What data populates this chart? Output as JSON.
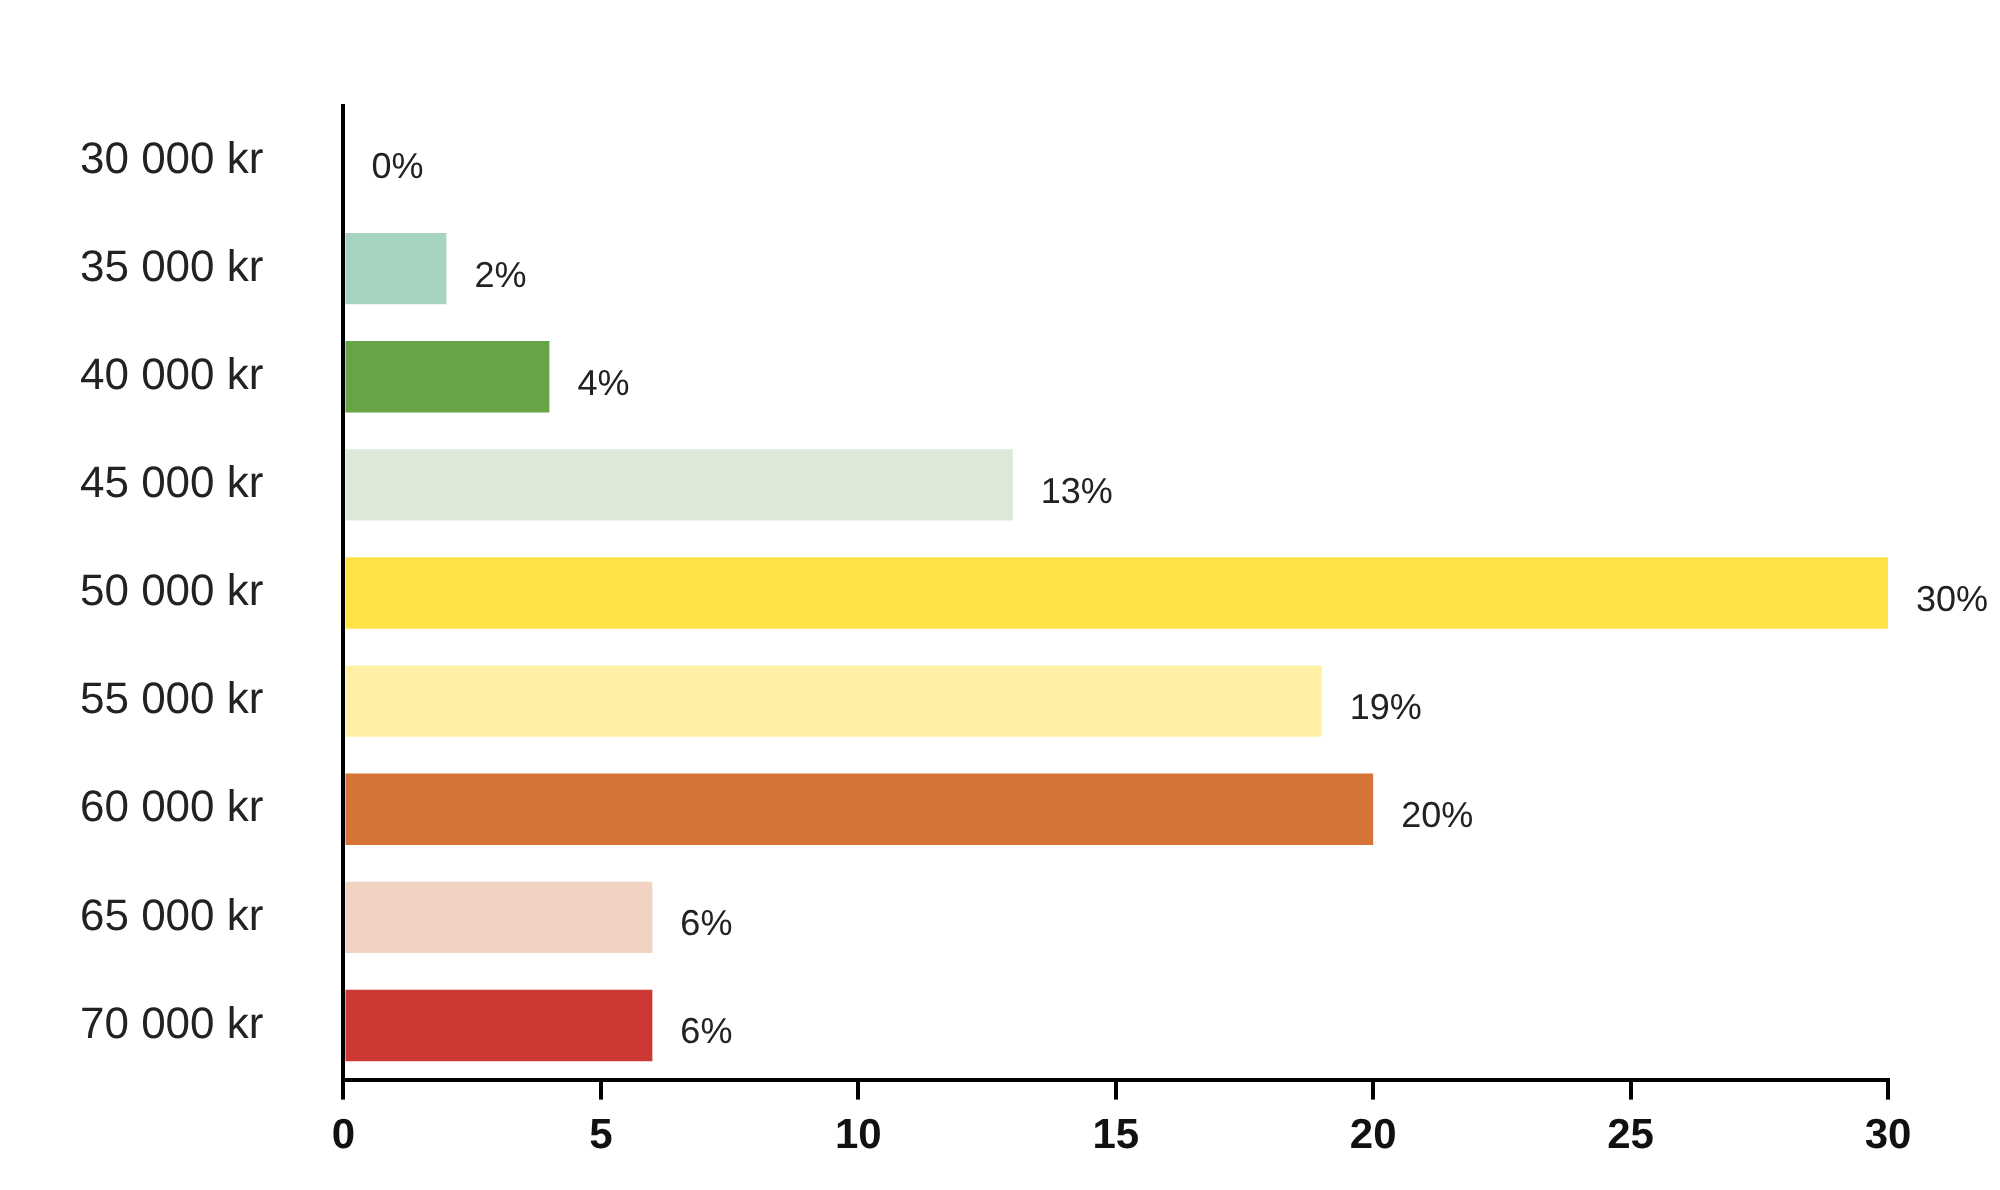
{
  "chart_data": {
    "type": "bar",
    "orientation": "horizontal",
    "categories": [
      "30 000 kr",
      "35 000 kr",
      "40 000 kr",
      "45 000 kr",
      "50 000 kr",
      "55 000 kr",
      "60 000 kr",
      "65 000 kr",
      "70 000 kr"
    ],
    "values": [
      0,
      2,
      4,
      13,
      30,
      19,
      20,
      6,
      6
    ],
    "value_labels": [
      "0%",
      "2%",
      "4%",
      "13%",
      "30%",
      "19%",
      "20%",
      "6%",
      "6%"
    ],
    "colors": [
      "#a6d4c0",
      "#a6d4c0",
      "#67a448",
      "#dde8d8",
      "#ffe347",
      "#fff0a6",
      "#d67338",
      "#f1d2c3",
      "#cc3834"
    ],
    "xlim": [
      0,
      30
    ],
    "xticks": [
      0,
      5,
      10,
      15,
      20,
      25,
      30
    ],
    "grid": false,
    "legend": false
  }
}
